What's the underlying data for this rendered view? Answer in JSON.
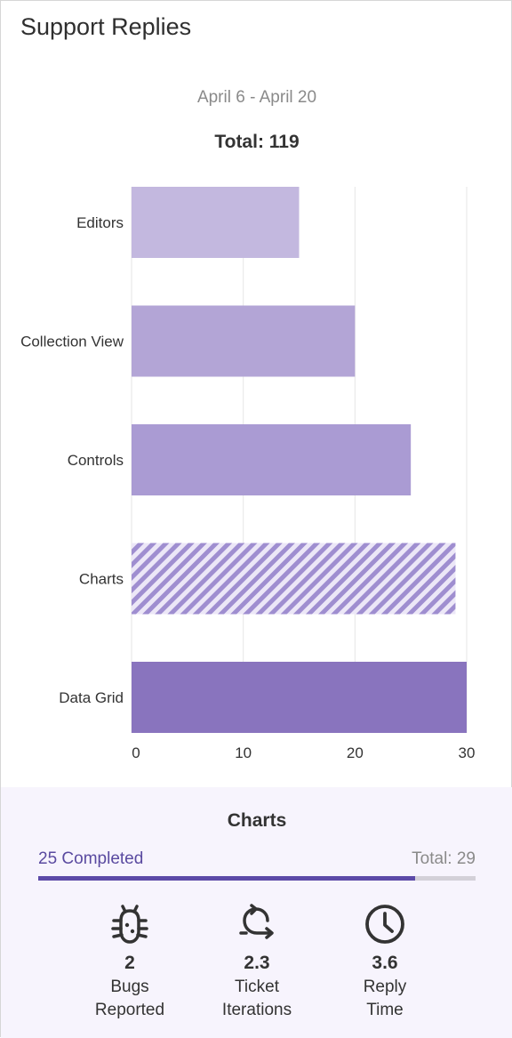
{
  "page_title": "Support Replies",
  "subtitle": "April 6 - April 20",
  "total_label": "Total: 119",
  "chart_data": {
    "type": "bar",
    "orientation": "horizontal",
    "categories": [
      "Editors",
      "Collection View",
      "Controls",
      "Charts",
      "Data Grid"
    ],
    "values": [
      15,
      20,
      25,
      29,
      30
    ],
    "xticks": [
      "0",
      "10",
      "20",
      "30"
    ],
    "xlim": [
      0,
      30
    ],
    "grid": true,
    "selected_category": "Charts",
    "colors": {
      "bars": [
        "#c3b8df",
        "#b3a5d6",
        "#aa9bd3",
        "#b1a2d8",
        "#8974be"
      ],
      "selected_stripe": "#9f8ed0",
      "gridline": "#e6e6e6"
    }
  },
  "detail": {
    "title": "Charts",
    "completed_label": "25 Completed",
    "total_label": "Total: 29",
    "progress": {
      "completed": 25,
      "total": 29
    },
    "accent_color": "#5c4aa8",
    "stats": [
      {
        "icon": "bug-icon",
        "value": "2",
        "label_line1": "Bugs",
        "label_line2": "Reported"
      },
      {
        "icon": "iterations-icon",
        "value": "2.3",
        "label_line1": "Ticket",
        "label_line2": "Iterations"
      },
      {
        "icon": "clock-icon",
        "value": "3.6",
        "label_line1": "Reply",
        "label_line2": "Time"
      }
    ]
  }
}
